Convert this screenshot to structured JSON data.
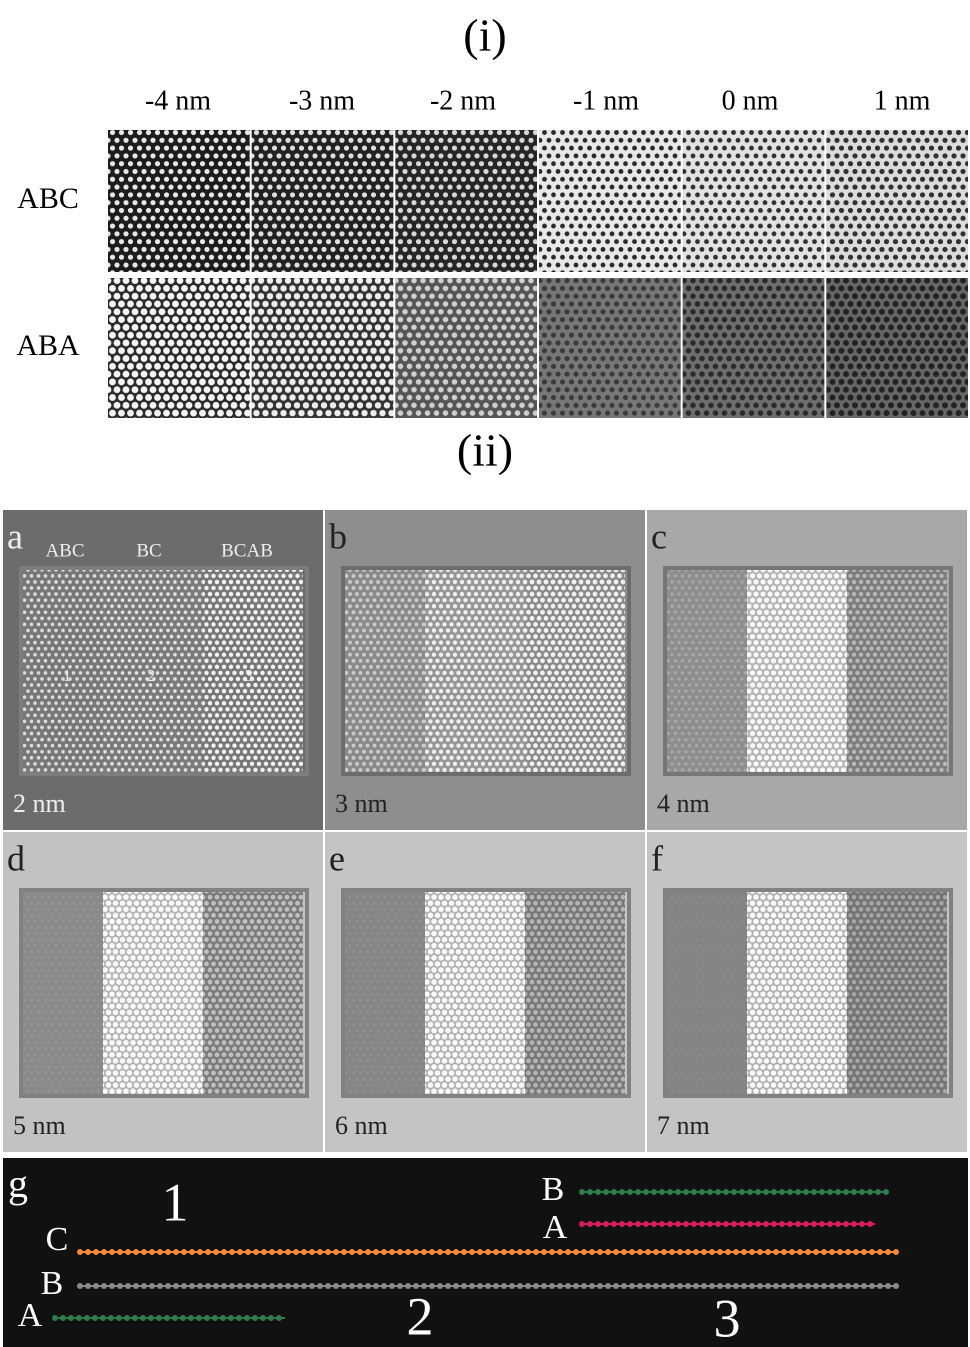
{
  "figure": {
    "part_i": {
      "label": "(i)",
      "column_labels": [
        "-4 nm",
        "-3 nm",
        "-2 nm",
        "-1 nm",
        "0 nm",
        "1 nm"
      ],
      "row_labels": [
        "ABC",
        "ABA"
      ]
    },
    "part_ii": {
      "label": "(ii)",
      "panels": [
        {
          "letter": "a",
          "defocus": "2 nm",
          "region_labels": [
            "ABC",
            "BC",
            "BCAB"
          ],
          "region_numbers": [
            "1",
            "2",
            "3"
          ]
        },
        {
          "letter": "b",
          "defocus": "3 nm"
        },
        {
          "letter": "c",
          "defocus": "4 nm"
        },
        {
          "letter": "d",
          "defocus": "5 nm"
        },
        {
          "letter": "e",
          "defocus": "6 nm"
        },
        {
          "letter": "f",
          "defocus": "7 nm"
        }
      ],
      "panel_g": {
        "letter": "g",
        "region_numbers": [
          "1",
          "2",
          "3"
        ],
        "layers": [
          {
            "label": "B",
            "color": "#2e7d4a"
          },
          {
            "label": "A",
            "color": "#d81b60"
          },
          {
            "label": "C",
            "color": "#f08a3c"
          },
          {
            "label": "B",
            "color": "#8a8a8a"
          },
          {
            "label": "A",
            "color": "#2e7d4a"
          }
        ]
      }
    }
  }
}
